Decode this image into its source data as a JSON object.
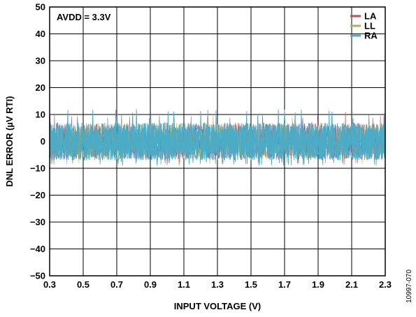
{
  "chart_data": {
    "type": "line",
    "xlabel": "INPUT VOLTAGE (V)",
    "ylabel": "DNL ERROR (µV RTI)",
    "xlim": [
      0.3,
      2.3
    ],
    "ylim": [
      -50,
      50
    ],
    "x_ticks": [
      "0.3",
      "0.5",
      "0.7",
      "0.9",
      "1.1",
      "1.3",
      "1.5",
      "1.7",
      "1.9",
      "2.1",
      "2.3"
    ],
    "y_ticks": [
      "50",
      "40",
      "30",
      "20",
      "10",
      "0",
      "−10",
      "−20",
      "−30",
      "−40",
      "−50"
    ],
    "grid": true,
    "legend_position": "top-right",
    "annotation": "AVDD = 3.3V",
    "figure_id": "10997-070",
    "series": [
      {
        "name": "LA",
        "color": "#c0504d",
        "x_range": [
          0.3,
          2.3
        ],
        "typical_band": [
          -7,
          7
        ],
        "peak_max": 11,
        "peak_min": -9
      },
      {
        "name": "LL",
        "color": "#9bbb59",
        "x_range": [
          0.3,
          2.3
        ],
        "typical_band": [
          -7,
          7
        ],
        "peak_max": 11,
        "peak_min": -9
      },
      {
        "name": "RA",
        "color": "#4bacc6",
        "x_range": [
          0.3,
          2.3
        ],
        "typical_band": [
          -7,
          7
        ],
        "peak_max": 12,
        "peak_min": -9
      }
    ]
  }
}
